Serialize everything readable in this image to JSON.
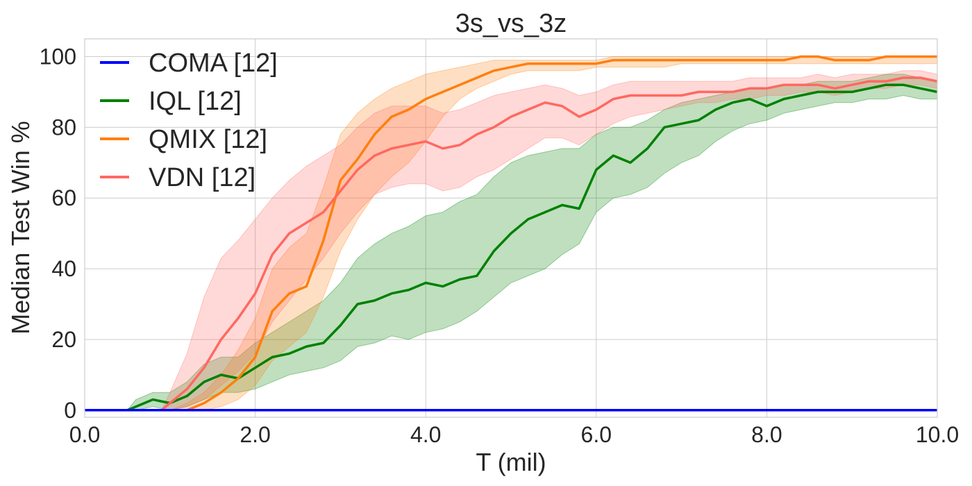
{
  "chart_data": {
    "type": "line",
    "title": "3s_vs_3z",
    "xlabel": "T (mil)",
    "ylabel": "Median Test Win %",
    "xlim": [
      0,
      10
    ],
    "ylim": [
      -2,
      105
    ],
    "xticks": [
      0,
      2,
      4,
      6,
      8,
      10
    ],
    "xtick_labels": [
      "0.0",
      "2.0",
      "4.0",
      "6.0",
      "8.0",
      "10.0"
    ],
    "yticks": [
      0,
      20,
      40,
      60,
      80,
      100
    ],
    "ytick_labels": [
      "0",
      "20",
      "40",
      "60",
      "80",
      "100"
    ],
    "grid": true,
    "legend_position": "top-left",
    "series": [
      {
        "name": "COMA [12]",
        "color": "#0000ff",
        "x": [
          0,
          10
        ],
        "y": [
          0,
          0
        ],
        "lower": null,
        "upper": null
      },
      {
        "name": "IQL [12]",
        "color": "#008000",
        "x": [
          0,
          0.5,
          0.6,
          0.8,
          1.0,
          1.2,
          1.4,
          1.6,
          1.8,
          2.0,
          2.2,
          2.4,
          2.6,
          2.8,
          3.0,
          3.2,
          3.4,
          3.6,
          3.8,
          4.0,
          4.2,
          4.4,
          4.6,
          4.8,
          5.0,
          5.2,
          5.4,
          5.6,
          5.8,
          6.0,
          6.2,
          6.4,
          6.6,
          6.8,
          7.0,
          7.2,
          7.4,
          7.6,
          7.8,
          8.0,
          8.2,
          8.4,
          8.6,
          8.8,
          9.0,
          9.2,
          9.4,
          9.6,
          9.8,
          10.0
        ],
        "y": [
          0,
          0,
          1,
          3,
          2,
          4,
          8,
          10,
          9,
          12,
          15,
          16,
          18,
          19,
          24,
          30,
          31,
          33,
          34,
          36,
          35,
          37,
          38,
          45,
          50,
          54,
          56,
          58,
          57,
          68,
          72,
          70,
          74,
          80,
          81,
          82,
          85,
          87,
          88,
          86,
          88,
          89,
          90,
          90,
          90,
          91,
          92,
          92,
          91,
          90
        ],
        "lower": [
          0,
          0,
          0,
          1,
          0,
          1,
          3,
          5,
          5,
          6,
          8,
          10,
          11,
          12,
          14,
          18,
          19,
          21,
          20,
          22,
          23,
          25,
          28,
          32,
          36,
          38,
          40,
          44,
          47,
          56,
          60,
          61,
          63,
          67,
          70,
          72,
          76,
          79,
          81,
          82,
          84,
          85,
          86,
          87,
          87,
          88,
          88,
          89,
          88,
          88
        ],
        "upper": [
          0,
          0,
          3,
          5,
          5,
          8,
          13,
          15,
          15,
          19,
          22,
          25,
          28,
          31,
          36,
          43,
          47,
          50,
          52,
          55,
          56,
          59,
          61,
          66,
          70,
          72,
          73,
          74,
          74,
          78,
          80,
          80,
          82,
          85,
          87,
          88,
          89,
          90,
          91,
          91,
          92,
          92,
          93,
          93,
          93,
          94,
          95,
          95,
          94,
          93
        ]
      },
      {
        "name": "QMIX [12]",
        "color": "#ff7f0e",
        "x": [
          0,
          1.0,
          1.2,
          1.4,
          1.6,
          1.8,
          2.0,
          2.2,
          2.4,
          2.6,
          2.8,
          3.0,
          3.2,
          3.4,
          3.6,
          3.8,
          4.0,
          4.2,
          4.4,
          4.6,
          4.8,
          5.0,
          5.2,
          5.4,
          5.6,
          5.8,
          6.0,
          6.2,
          6.4,
          6.6,
          6.8,
          7.0,
          7.2,
          7.4,
          7.6,
          7.8,
          8.0,
          8.2,
          8.4,
          8.6,
          8.8,
          9.0,
          9.2,
          9.4,
          9.6,
          9.8,
          10.0
        ],
        "y": [
          0,
          0,
          0,
          2,
          5,
          9,
          15,
          28,
          33,
          35,
          48,
          65,
          71,
          78,
          83,
          85,
          88,
          90,
          92,
          94,
          96,
          97,
          98,
          98,
          98,
          98,
          98,
          99,
          99,
          99,
          99,
          99,
          99,
          99,
          99,
          99,
          99,
          99,
          100,
          100,
          99,
          99,
          99,
          100,
          100,
          100,
          100
        ],
        "lower": [
          0,
          0,
          0,
          0,
          1,
          3,
          7,
          14,
          18,
          22,
          32,
          45,
          54,
          61,
          66,
          70,
          76,
          83,
          88,
          91,
          93,
          95,
          96,
          96,
          96,
          96,
          97,
          97,
          97,
          97,
          97,
          98,
          98,
          98,
          98,
          98,
          98,
          98,
          98,
          98,
          98,
          98,
          98,
          98,
          98,
          98,
          98
        ],
        "upper": [
          0,
          0,
          2,
          5,
          10,
          17,
          26,
          40,
          46,
          50,
          63,
          78,
          84,
          88,
          91,
          93,
          95,
          96,
          97,
          98,
          99,
          99,
          99,
          99,
          99,
          99,
          99,
          100,
          100,
          100,
          100,
          100,
          100,
          100,
          100,
          100,
          100,
          100,
          100,
          100,
          100,
          100,
          100,
          100,
          100,
          100,
          100
        ]
      },
      {
        "name": "VDN [12]",
        "color": "#ff6961",
        "x": [
          0,
          0.9,
          1.0,
          1.2,
          1.4,
          1.6,
          1.8,
          2.0,
          2.2,
          2.4,
          2.6,
          2.8,
          3.0,
          3.2,
          3.4,
          3.6,
          3.8,
          4.0,
          4.2,
          4.4,
          4.6,
          4.8,
          5.0,
          5.2,
          5.4,
          5.6,
          5.8,
          6.0,
          6.2,
          6.4,
          6.6,
          6.8,
          7.0,
          7.2,
          7.4,
          7.6,
          7.8,
          8.0,
          8.2,
          8.4,
          8.6,
          8.8,
          9.0,
          9.2,
          9.4,
          9.6,
          9.8,
          10.0
        ],
        "y": [
          0,
          0,
          2,
          6,
          12,
          20,
          26,
          33,
          44,
          50,
          53,
          56,
          62,
          68,
          72,
          74,
          75,
          76,
          74,
          75,
          78,
          80,
          83,
          85,
          87,
          86,
          83,
          85,
          88,
          89,
          89,
          89,
          89,
          90,
          90,
          90,
          91,
          91,
          92,
          92,
          92,
          91,
          92,
          93,
          93,
          94,
          94,
          93
        ],
        "lower": [
          0,
          0,
          0,
          1,
          3,
          7,
          11,
          16,
          25,
          31,
          37,
          43,
          50,
          56,
          61,
          63,
          64,
          64,
          62,
          63,
          66,
          68,
          71,
          74,
          77,
          77,
          75,
          78,
          81,
          83,
          84,
          85,
          86,
          87,
          87,
          88,
          88,
          89,
          89,
          90,
          90,
          89,
          90,
          91,
          91,
          92,
          92,
          91
        ],
        "upper": [
          0,
          0,
          5,
          16,
          32,
          43,
          48,
          54,
          60,
          65,
          69,
          72,
          75,
          80,
          84,
          86,
          86,
          86,
          84,
          85,
          87,
          89,
          90,
          91,
          92,
          91,
          89,
          90,
          92,
          93,
          93,
          93,
          93,
          93,
          93,
          93,
          94,
          94,
          94,
          94,
          95,
          94,
          95,
          95,
          95,
          96,
          96,
          95
        ]
      }
    ]
  }
}
